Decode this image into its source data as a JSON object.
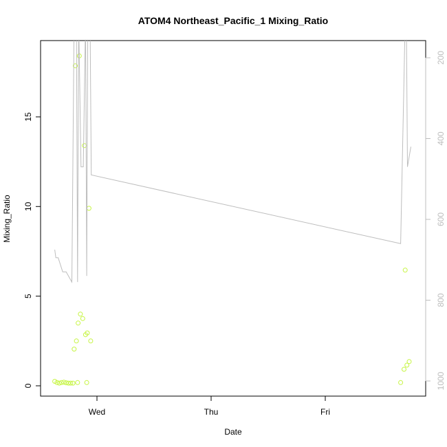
{
  "chart_data": {
    "type": "scatter",
    "title": "ATOM4 Northeast_Pacific_1 Mixing_Ratio",
    "xlabel": "Date",
    "ylabel": "Mixing_Ratio",
    "x_ticks": [
      "Wed",
      "Thu",
      "Fri"
    ],
    "ylim": [
      0,
      19.2
    ],
    "y_ticks": [
      0,
      5,
      10,
      15
    ],
    "y2_ticks": [
      200,
      400,
      600,
      800,
      1000
    ],
    "y2_reversed": true,
    "y2_range_top_to_bottom": [
      170,
      1040
    ],
    "x_range_days_from_wed": [
      -0.43,
      2.75
    ],
    "series": [
      {
        "kind": "points",
        "color": "#c6f542",
        "points": [
          [
            -0.37,
            0.25
          ],
          [
            -0.35,
            0.18
          ],
          [
            -0.33,
            0.15
          ],
          [
            -0.31,
            0.18
          ],
          [
            -0.29,
            0.2
          ],
          [
            -0.27,
            0.17
          ],
          [
            -0.25,
            0.15
          ],
          [
            -0.23,
            0.15
          ],
          [
            -0.21,
            0.15
          ],
          [
            -0.2,
            2.05
          ],
          [
            -0.19,
            17.85
          ],
          [
            -0.18,
            2.5
          ],
          [
            -0.17,
            0.18
          ],
          [
            -0.165,
            3.5
          ],
          [
            -0.155,
            18.4
          ],
          [
            -0.145,
            4.0
          ],
          [
            -0.125,
            3.75
          ],
          [
            -0.11,
            13.4
          ],
          [
            -0.1,
            2.85
          ],
          [
            -0.09,
            0.18
          ],
          [
            -0.085,
            2.95
          ],
          [
            -0.07,
            9.9
          ],
          [
            -0.055,
            2.5
          ],
          [
            2.66,
            0.18
          ],
          [
            2.69,
            0.92
          ],
          [
            2.7,
            6.45
          ],
          [
            2.715,
            1.15
          ],
          [
            2.735,
            1.35
          ]
        ]
      },
      {
        "kind": "line",
        "color": "#bdbdbd",
        "axis": "right",
        "points": [
          [
            -0.37,
            675
          ],
          [
            -0.36,
            695
          ],
          [
            -0.34,
            695
          ],
          [
            -0.3,
            730
          ],
          [
            -0.27,
            730
          ],
          [
            -0.22,
            755
          ],
          [
            -0.2,
            100
          ],
          [
            -0.18,
            100
          ],
          [
            -0.17,
            755
          ],
          [
            -0.16,
            100
          ],
          [
            -0.14,
            470
          ],
          [
            -0.12,
            470
          ],
          [
            -0.1,
            100
          ],
          [
            -0.09,
            740
          ],
          [
            -0.08,
            100
          ],
          [
            -0.06,
            100
          ],
          [
            -0.05,
            490
          ],
          [
            2.66,
            660
          ],
          [
            2.69,
            250
          ],
          [
            2.7,
            100
          ],
          [
            2.71,
            100
          ],
          [
            2.72,
            470
          ],
          [
            2.75,
            420
          ]
        ]
      }
    ]
  }
}
